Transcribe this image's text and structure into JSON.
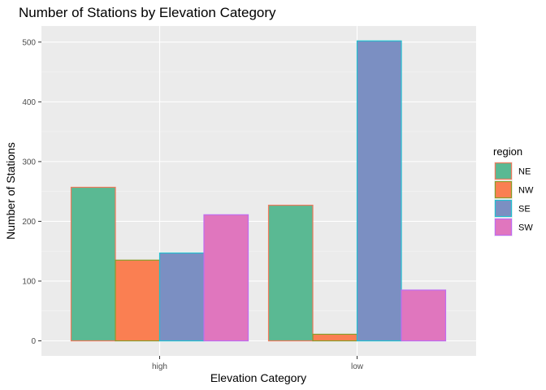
{
  "chart_data": {
    "type": "bar",
    "title": "Number of Stations by Elevation Category",
    "xlabel": "Elevation Category",
    "ylabel": "Number of Stations",
    "categories": [
      "high",
      "low"
    ],
    "ylim": [
      0,
      530
    ],
    "yticks": [
      0,
      100,
      200,
      300,
      400,
      500
    ],
    "grid": true,
    "legend": {
      "title": "region",
      "position": "right"
    },
    "series": [
      {
        "name": "NE",
        "values": [
          257,
          227
        ],
        "fill": "#5ab993",
        "stroke": "#f0795b"
      },
      {
        "name": "NW",
        "values": [
          135,
          11
        ],
        "fill": "#fa7f52",
        "stroke": "#8a9c28"
      },
      {
        "name": "SE",
        "values": [
          147,
          502
        ],
        "fill": "#7b8fc2",
        "stroke": "#22bfd0"
      },
      {
        "name": "SW",
        "values": [
          211,
          85
        ],
        "fill": "#e076be",
        "stroke": "#c06cf0"
      }
    ]
  }
}
